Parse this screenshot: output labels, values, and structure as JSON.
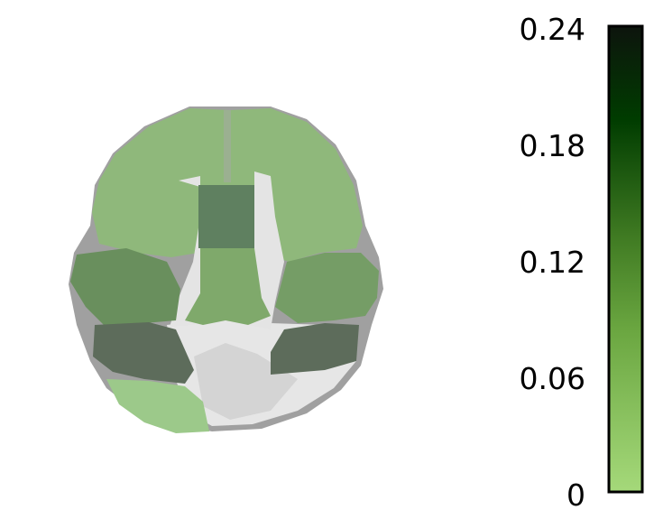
{
  "figure": {
    "type": "brain-axial-slice-overlay",
    "colors": {
      "background": "#ffffff",
      "brain_gray_light": "#ececec",
      "brain_gray_mid": "#c8c8c8",
      "brain_gray_dark": "#9c9c9c",
      "cmap_low": "#a5d97a",
      "cmap_mid": "#4f8a2a",
      "cmap_high_mid": "#1f5a10",
      "cmap_high": "#002a00",
      "cmap_top": "#0d140d",
      "colorbar_border": "#000000"
    },
    "regions": [
      {
        "name": "frontal-lobe",
        "value": 0.04
      },
      {
        "name": "temporal-lobe-left",
        "value": 0.1
      },
      {
        "name": "temporal-lobe-right",
        "value": 0.07
      },
      {
        "name": "medial-frontal",
        "value": 0.16
      },
      {
        "name": "inferior-temporal-left",
        "value": 0.18
      },
      {
        "name": "inferior-temporal-right",
        "value": 0.18
      },
      {
        "name": "occipital-left",
        "value": 0.03
      }
    ]
  },
  "colorbar": {
    "min": 0,
    "max": 0.24,
    "ticks": [
      "0",
      "0.06",
      "0.12",
      "0.18",
      "0.24"
    ]
  }
}
